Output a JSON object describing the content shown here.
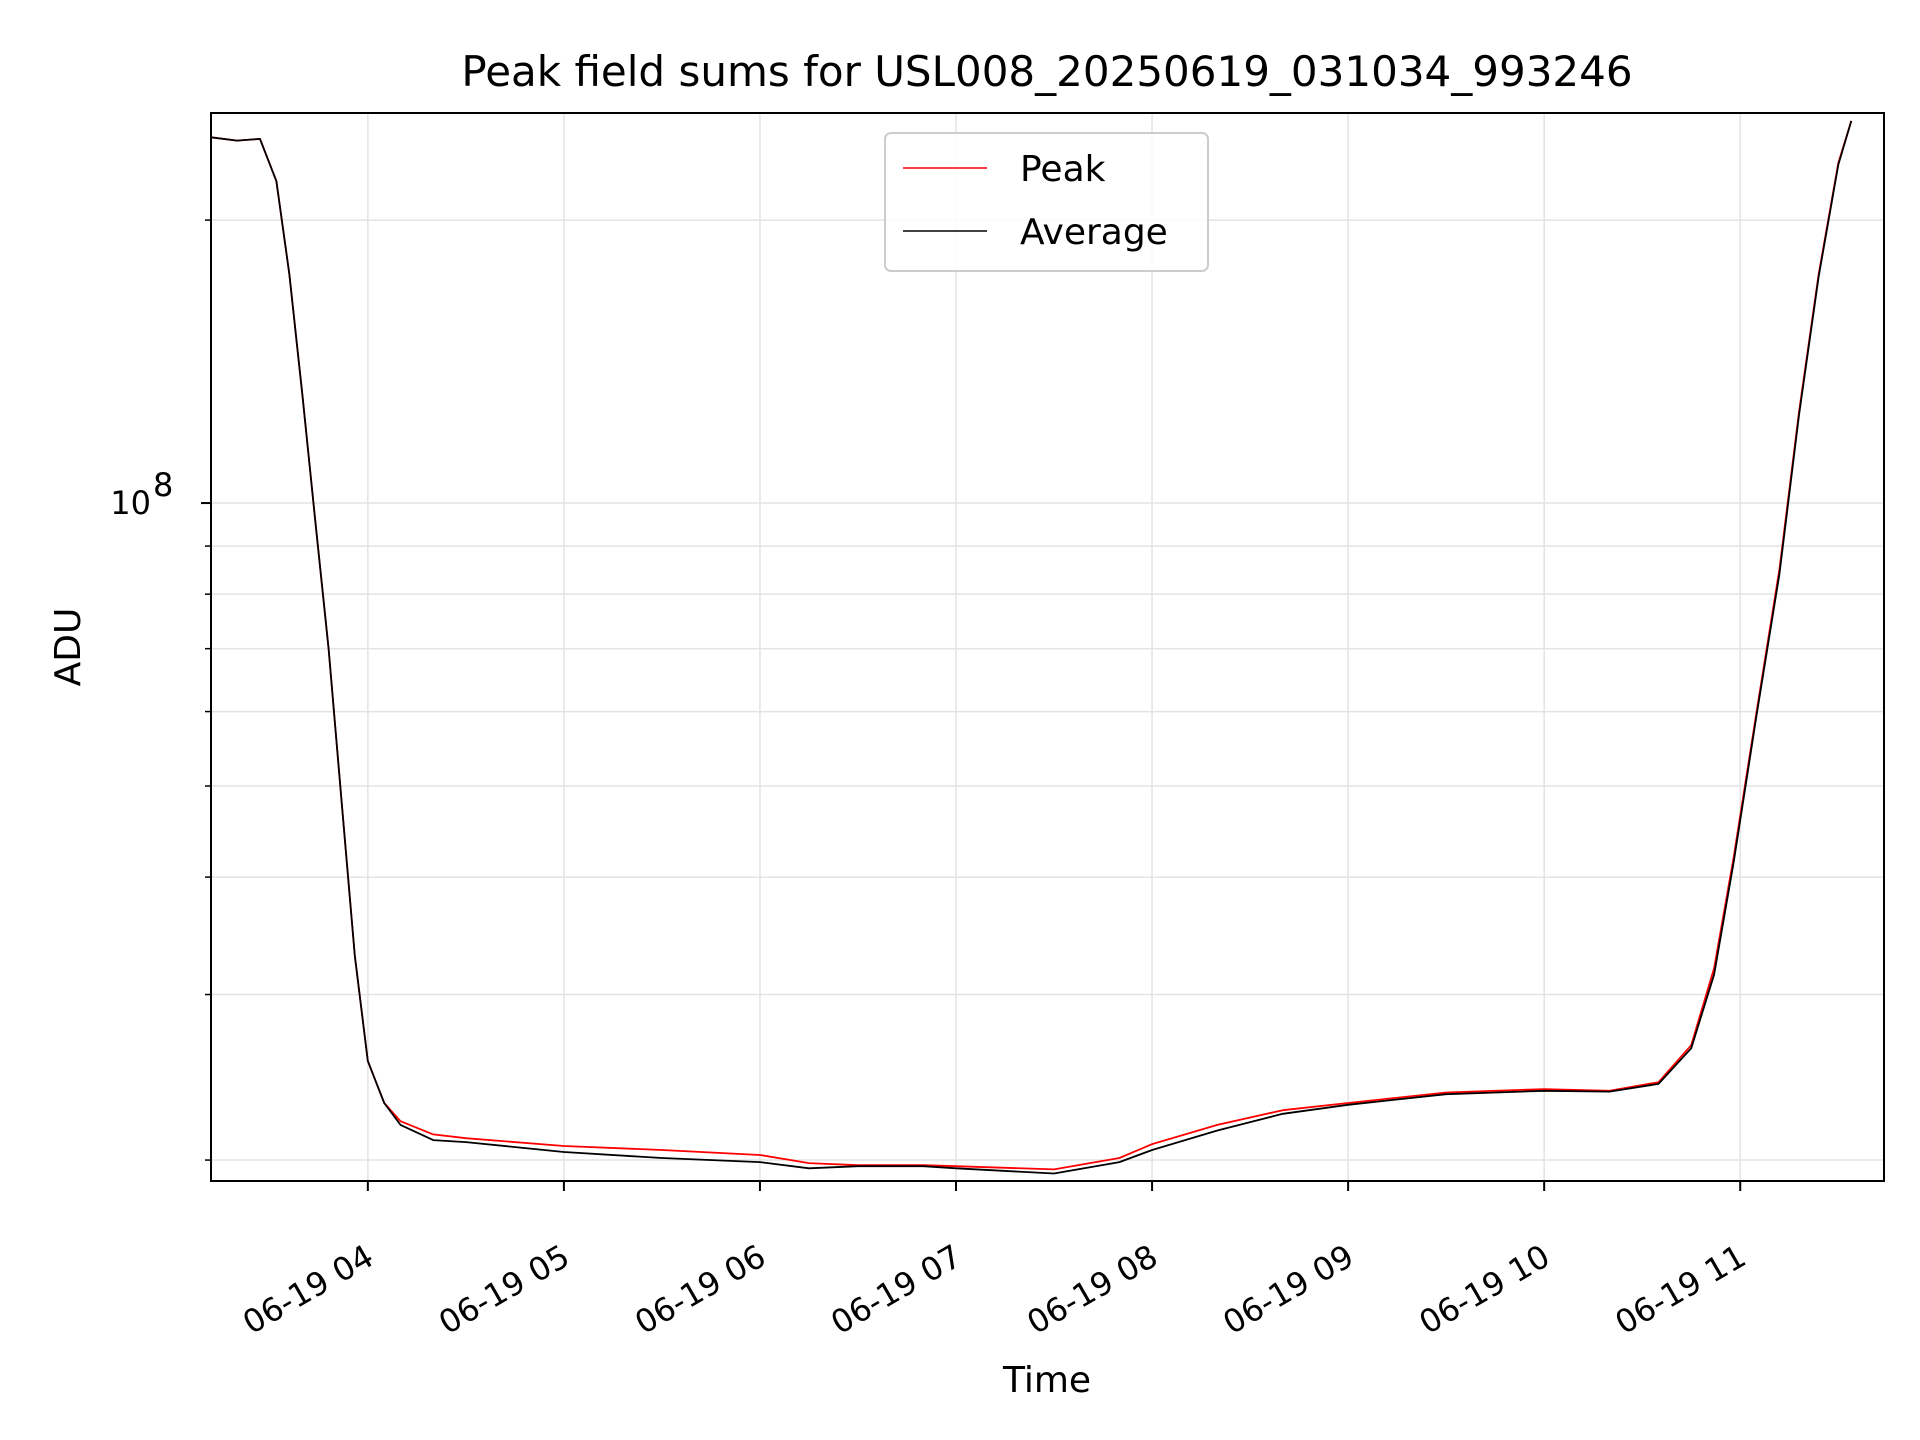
{
  "chart_data": {
    "type": "line",
    "title": "Peak field sums for USL008_20250619_031034_993246",
    "xlabel": "Time",
    "ylabel": "ADU",
    "y_scale": "log",
    "x_range": [
      "2025-06-19T03:12",
      "2025-06-19T11:44"
    ],
    "y_range": [
      19000000,
      260000000
    ],
    "grid": true,
    "legend_position": "upper-center",
    "x_ticks": [
      {
        "t": "2025-06-19T04:00",
        "label": "06-19 04"
      },
      {
        "t": "2025-06-19T05:00",
        "label": "06-19 05"
      },
      {
        "t": "2025-06-19T06:00",
        "label": "06-19 06"
      },
      {
        "t": "2025-06-19T07:00",
        "label": "06-19 07"
      },
      {
        "t": "2025-06-19T08:00",
        "label": "06-19 08"
      },
      {
        "t": "2025-06-19T09:00",
        "label": "06-19 09"
      },
      {
        "t": "2025-06-19T10:00",
        "label": "06-19 10"
      },
      {
        "t": "2025-06-19T11:00",
        "label": "06-19 11"
      }
    ],
    "y_major_ticks": [
      {
        "value": 100000000,
        "label_base": "10",
        "label_exp": "8"
      }
    ],
    "y_minor_ticks": [
      20000000,
      30000000,
      40000000,
      50000000,
      60000000,
      70000000,
      80000000,
      90000000,
      200000000
    ],
    "series": [
      {
        "name": "Peak",
        "color": "#ff0000",
        "points": [
          [
            "2025-06-19T03:12",
            245000000
          ],
          [
            "2025-06-19T03:20",
            243000000
          ],
          [
            "2025-06-19T03:27",
            244000000
          ],
          [
            "2025-06-19T03:32",
            220000000
          ],
          [
            "2025-06-19T03:36",
            175000000
          ],
          [
            "2025-06-19T03:40",
            130000000
          ],
          [
            "2025-06-19T03:44",
            95000000
          ],
          [
            "2025-06-19T03:48",
            70000000
          ],
          [
            "2025-06-19T03:52",
            48000000
          ],
          [
            "2025-06-19T03:56",
            33000000
          ],
          [
            "2025-06-19T04:00",
            25500000
          ],
          [
            "2025-06-19T04:05",
            23000000
          ],
          [
            "2025-06-19T04:10",
            22000000
          ],
          [
            "2025-06-19T04:20",
            21300000
          ],
          [
            "2025-06-19T04:30",
            21100000
          ],
          [
            "2025-06-19T05:00",
            20700000
          ],
          [
            "2025-06-19T05:30",
            20500000
          ],
          [
            "2025-06-19T06:00",
            20250000
          ],
          [
            "2025-06-19T06:15",
            19850000
          ],
          [
            "2025-06-19T06:30",
            19750000
          ],
          [
            "2025-06-19T06:50",
            19750000
          ],
          [
            "2025-06-19T07:00",
            19700000
          ],
          [
            "2025-06-19T07:30",
            19550000
          ],
          [
            "2025-06-19T07:50",
            20100000
          ],
          [
            "2025-06-19T08:00",
            20800000
          ],
          [
            "2025-06-19T08:20",
            21800000
          ],
          [
            "2025-06-19T08:40",
            22600000
          ],
          [
            "2025-06-19T09:00",
            23000000
          ],
          [
            "2025-06-19T09:30",
            23600000
          ],
          [
            "2025-06-19T10:00",
            23800000
          ],
          [
            "2025-06-19T10:20",
            23700000
          ],
          [
            "2025-06-19T10:35",
            24200000
          ],
          [
            "2025-06-19T10:45",
            26500000
          ],
          [
            "2025-06-19T10:52",
            32000000
          ],
          [
            "2025-06-19T10:58",
            42000000
          ],
          [
            "2025-06-19T11:05",
            60000000
          ],
          [
            "2025-06-19T11:12",
            85000000
          ],
          [
            "2025-06-19T11:18",
            125000000
          ],
          [
            "2025-06-19T11:24",
            175000000
          ],
          [
            "2025-06-19T11:30",
            230000000
          ],
          [
            "2025-06-19T11:34",
            255000000
          ]
        ]
      },
      {
        "name": "Average",
        "color": "#000000",
        "points": [
          [
            "2025-06-19T03:12",
            245000000
          ],
          [
            "2025-06-19T03:20",
            243000000
          ],
          [
            "2025-06-19T03:27",
            244000000
          ],
          [
            "2025-06-19T03:32",
            220000000
          ],
          [
            "2025-06-19T03:36",
            175000000
          ],
          [
            "2025-06-19T03:40",
            130000000
          ],
          [
            "2025-06-19T03:44",
            95000000
          ],
          [
            "2025-06-19T03:48",
            70000000
          ],
          [
            "2025-06-19T03:52",
            48000000
          ],
          [
            "2025-06-19T03:56",
            33000000
          ],
          [
            "2025-06-19T04:00",
            25500000
          ],
          [
            "2025-06-19T04:05",
            23000000
          ],
          [
            "2025-06-19T04:10",
            21800000
          ],
          [
            "2025-06-19T04:20",
            21000000
          ],
          [
            "2025-06-19T04:30",
            20900000
          ],
          [
            "2025-06-19T05:00",
            20400000
          ],
          [
            "2025-06-19T05:30",
            20100000
          ],
          [
            "2025-06-19T06:00",
            19900000
          ],
          [
            "2025-06-19T06:15",
            19600000
          ],
          [
            "2025-06-19T06:30",
            19700000
          ],
          [
            "2025-06-19T06:50",
            19700000
          ],
          [
            "2025-06-19T07:00",
            19600000
          ],
          [
            "2025-06-19T07:30",
            19350000
          ],
          [
            "2025-06-19T07:50",
            19900000
          ],
          [
            "2025-06-19T08:00",
            20500000
          ],
          [
            "2025-06-19T08:20",
            21500000
          ],
          [
            "2025-06-19T08:40",
            22400000
          ],
          [
            "2025-06-19T09:00",
            22900000
          ],
          [
            "2025-06-19T09:30",
            23500000
          ],
          [
            "2025-06-19T10:00",
            23700000
          ],
          [
            "2025-06-19T10:20",
            23650000
          ],
          [
            "2025-06-19T10:35",
            24100000
          ],
          [
            "2025-06-19T10:45",
            26300000
          ],
          [
            "2025-06-19T10:52",
            31500000
          ],
          [
            "2025-06-19T10:58",
            41500000
          ],
          [
            "2025-06-19T11:05",
            59500000
          ],
          [
            "2025-06-19T11:12",
            84000000
          ],
          [
            "2025-06-19T11:18",
            124000000
          ],
          [
            "2025-06-19T11:24",
            174000000
          ],
          [
            "2025-06-19T11:30",
            229000000
          ],
          [
            "2025-06-19T11:34",
            255000000
          ]
        ]
      }
    ]
  }
}
